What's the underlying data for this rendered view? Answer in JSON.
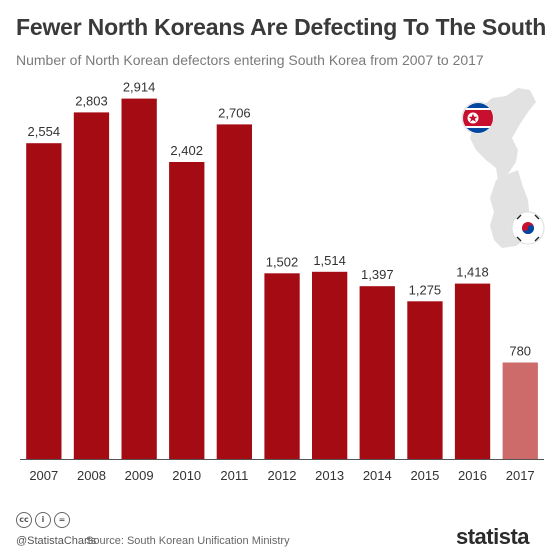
{
  "header": {
    "title": "Fewer North Koreans Are Defecting To The South",
    "subtitle": "Number of North Korean defectors entering South Korea from 2007 to 2017"
  },
  "footer": {
    "handle": "@StatistaCharts",
    "source": "Source: South Korean Unification Ministry",
    "brand": "statista",
    "license_icons": [
      "cc-icon",
      "by-icon",
      "nd-icon"
    ]
  },
  "colors": {
    "bar": "#a50b13",
    "bar_highlight": "#cd6b6b",
    "map": "#e2e2e2",
    "flag_red": "#c8102e",
    "flag_blue": "#0047a0"
  },
  "chart_data": {
    "type": "bar",
    "categories": [
      "2007",
      "2008",
      "2009",
      "2010",
      "2011",
      "2012",
      "2013",
      "2014",
      "2015",
      "2016",
      "2017"
    ],
    "values": [
      2554,
      2803,
      2914,
      2402,
      2706,
      1502,
      1514,
      1397,
      1275,
      1418,
      780
    ],
    "value_labels": [
      "2,554",
      "2,803",
      "2,914",
      "2,402",
      "2,706",
      "1,502",
      "1,514",
      "1,397",
      "1,275",
      "1,418",
      "780"
    ],
    "title": "Fewer North Koreans Are Defecting To The South",
    "subtitle": "Number of North Korean defectors entering South Korea from 2007 to 2017",
    "xlabel": "",
    "ylabel": "",
    "ylim": [
      0,
      3000
    ],
    "grid": false,
    "legend": "none",
    "highlight_last": true
  }
}
